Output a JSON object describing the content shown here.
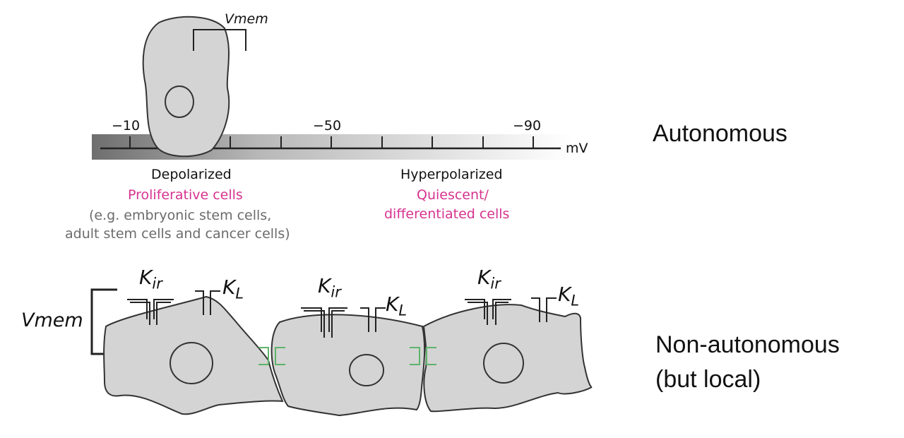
{
  "colors": {
    "cell_fill": "#d4d4d4",
    "outline": "#333333",
    "magenta": "#d6338f",
    "gray_text": "#6b6b6b",
    "gap_junction": "#5fb36a"
  },
  "autonomous": {
    "heading": "Autonomous",
    "vmem_label": "Vmem",
    "scale": {
      "unit": "mV",
      "tick_labels": [
        "−10",
        "−50",
        "−90"
      ]
    },
    "depolarized": {
      "title": "Depolarized",
      "cells": "Proliferative cells",
      "examples_line1": "(e.g. embryonic stem cells,",
      "examples_line2": "adult stem cells and cancer cells)"
    },
    "hyperpolarized": {
      "title": "Hyperpolarized",
      "cells_line1": "Quiescent/",
      "cells_line2": "differentiated cells"
    }
  },
  "non_autonomous": {
    "heading_line1": "Non-autonomous",
    "heading_line2": "(but local)",
    "vmem_label": "Vmem",
    "channel_kir": {
      "base": "K",
      "sub": "ir"
    },
    "channel_kl": {
      "base": "K",
      "sub": "L"
    }
  }
}
